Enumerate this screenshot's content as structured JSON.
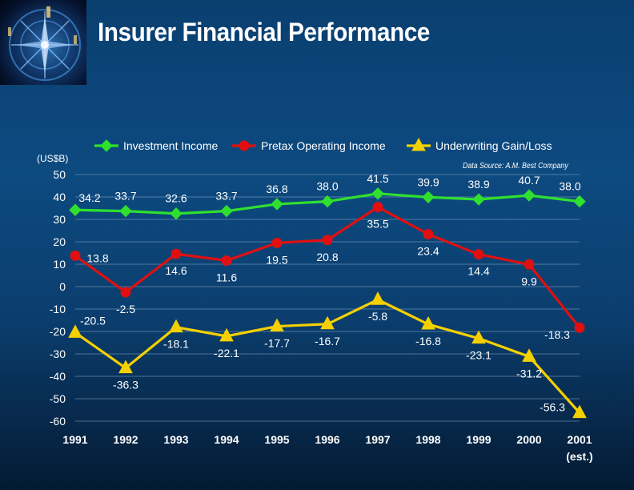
{
  "header": {
    "title": "Insurer Financial Performance"
  },
  "annotations": {
    "unit": "(US$B)",
    "source": "Data Source: A.M. Best Company"
  },
  "chart_data": {
    "type": "line",
    "categories": [
      "1991",
      "1992",
      "1993",
      "1994",
      "1995",
      "1996",
      "1997",
      "1998",
      "1999",
      "2000",
      "2001"
    ],
    "category_sublabels": [
      "",
      "",
      "",
      "",
      "",
      "",
      "",
      "",
      "",
      "",
      "(est.)"
    ],
    "ylim": [
      -60,
      50
    ],
    "yticks": [
      50,
      40,
      30,
      20,
      10,
      0,
      -10,
      -20,
      -30,
      -40,
      -50,
      -60
    ],
    "grid": true,
    "legend_position": "top",
    "series": [
      {
        "name": "Investment Income",
        "color": "#2fe02f",
        "marker": "diamond",
        "values": [
          34.2,
          33.7,
          32.6,
          33.7,
          36.8,
          38.0,
          41.5,
          39.9,
          38.9,
          40.7,
          38.0
        ],
        "labels": [
          "34.2",
          "33.7",
          "32.6",
          "33.7",
          "36.8",
          "38.0",
          "41.5",
          "39.9",
          "38.9",
          "40.7",
          "38.0"
        ]
      },
      {
        "name": "Pretax Operating Income",
        "color": "#e01010",
        "marker": "circle",
        "values": [
          13.8,
          -2.5,
          14.6,
          11.6,
          19.5,
          20.8,
          35.5,
          23.4,
          14.4,
          9.9,
          -18.3
        ],
        "labels": [
          "13.8",
          "-2.5",
          "14.6",
          "11.6",
          "19.5",
          "20.8",
          "35.5",
          "23.4",
          "14.4",
          "9.9",
          "-18.3"
        ]
      },
      {
        "name": "Underwriting Gain/Loss",
        "color": "#f5d000",
        "marker": "triangle",
        "values": [
          -20.5,
          -36.3,
          -18.1,
          -22.1,
          -17.7,
          -16.7,
          -5.8,
          -16.8,
          -23.1,
          -31.2,
          -56.3
        ],
        "labels": [
          "-20.5",
          "-36.3",
          "-18.1",
          "-22.1",
          "-17.7",
          "-16.7",
          "-5.8",
          "-16.8",
          "-23.1",
          "-31.2",
          "-56.3"
        ]
      }
    ]
  }
}
